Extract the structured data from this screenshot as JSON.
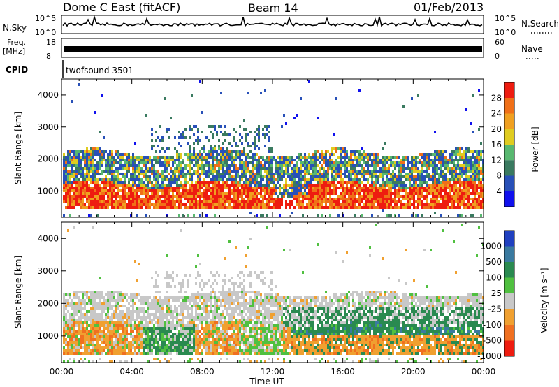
{
  "header": {
    "title": "Dome C East (fitACF)",
    "beam": "Beam 14",
    "date": "01/Feb/2013"
  },
  "top_panels": {
    "nsky_label": "N.Sky",
    "nsky_ticks": [
      "10^5",
      "10^0"
    ],
    "nsearch_label": "N.Search",
    "nsearch_ticks": [
      "10^5",
      "10^0"
    ],
    "freq_label": "Freq.",
    "freq_unit": "[MHz]",
    "freq_ticks": [
      "18",
      "8"
    ],
    "nave_label": "Nave",
    "nave_ticks": [
      "60",
      "0"
    ],
    "cpid_label": "CPID",
    "cpid_value": "twofsound 3501"
  },
  "axes": {
    "x_label": "Time UT",
    "x_ticks": [
      "00:00",
      "04:00",
      "08:00",
      "12:00",
      "16:00",
      "20:00",
      "00:00"
    ],
    "y_label": "Slant Range [km]",
    "y_ticks": [
      "1000",
      "2000",
      "3000",
      "4000"
    ]
  },
  "colorbars": {
    "power": {
      "label": "Power [dB]",
      "ticks": [
        "4",
        "8",
        "12",
        "16",
        "20",
        "24",
        "28"
      ],
      "colors": [
        "#1010ee",
        "#2850b8",
        "#3a7a60",
        "#58b870",
        "#e0cc20",
        "#f0a020",
        "#f07018",
        "#ee1c10"
      ]
    },
    "velocity": {
      "label": "Velocity [m s⁻¹]",
      "ticks": [
        "1000",
        "500",
        "100",
        "25",
        "-25",
        "-100",
        "-500",
        "-1000"
      ],
      "colors": [
        "#2040c0",
        "#3a7aa0",
        "#2a8a50",
        "#50c040",
        "#c8c8c8",
        "#f0a030",
        "#f07020",
        "#ee1c10"
      ]
    }
  },
  "chart_data": [
    {
      "type": "heatmap",
      "title": "Power",
      "xlabel": "Time UT",
      "ylabel": "Slant Range [km]",
      "xlim": [
        "00:00",
        "24:00"
      ],
      "ylim": [
        180,
        4500
      ],
      "colorbar": "Power [dB]",
      "colorbar_range": [
        0,
        30
      ],
      "bands": [
        {
          "t_start": 0,
          "t_end": 24,
          "range_min": 500,
          "range_max": 1300,
          "value": 26
        },
        {
          "t_start": 0,
          "t_end": 24,
          "range_min": 1300,
          "range_max": 2200,
          "value": 10
        },
        {
          "t_start": 6,
          "t_end": 12,
          "range_min": 2200,
          "range_max": 3000,
          "value": 6
        }
      ]
    },
    {
      "type": "heatmap",
      "title": "Velocity",
      "xlabel": "Time UT",
      "ylabel": "Slant Range [km]",
      "xlim": [
        "00:00",
        "24:00"
      ],
      "ylim": [
        180,
        4500
      ],
      "colorbar": "Velocity [m s⁻¹]",
      "colorbar_range": [
        -1000,
        1000
      ],
      "bands": [
        {
          "t_start": 0,
          "t_end": 24,
          "range_min": 1500,
          "range_max": 2400,
          "value": 0
        },
        {
          "t_start": 0,
          "t_end": 12,
          "range_min": 500,
          "range_max": 1500,
          "value": -200
        },
        {
          "t_start": 13,
          "t_end": 24,
          "range_min": 700,
          "range_max": 1700,
          "value": 150
        }
      ]
    }
  ]
}
